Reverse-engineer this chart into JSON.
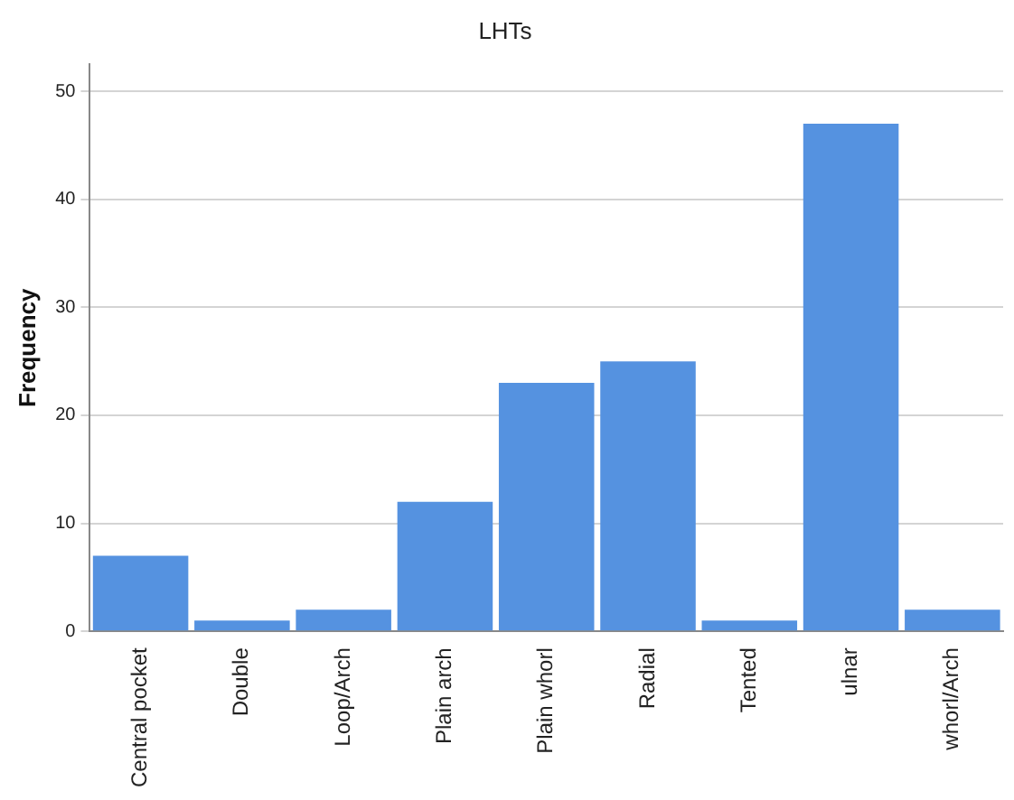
{
  "chart_data": {
    "type": "bar",
    "title": "LHTs",
    "ylabel": "Frequency",
    "categories": [
      "Central pocket",
      "Double",
      "Loop/Arch",
      "Plain arch",
      "Plain whorl",
      "Radial",
      "Tented",
      "ulnar",
      "whorl/Arch"
    ],
    "values": [
      7,
      1,
      2,
      12,
      23,
      25,
      1,
      47,
      2
    ],
    "color": "#5592e0",
    "ylim": [
      0,
      52.5
    ],
    "yticks": [
      0,
      10,
      20,
      30,
      40,
      50
    ],
    "grid": "y",
    "legend": false
  }
}
